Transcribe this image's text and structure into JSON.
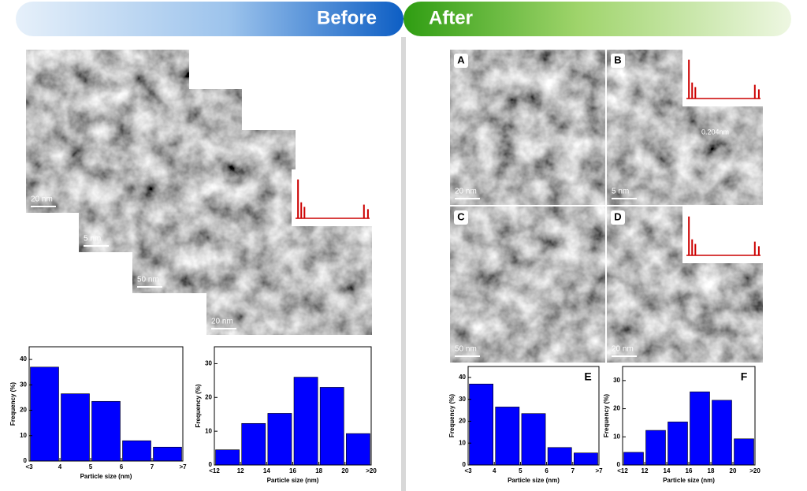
{
  "banner": {
    "before": "Before",
    "after": "After"
  },
  "before_images": [
    {
      "scale": "20 nm"
    },
    {
      "scale": "5 nm"
    },
    {
      "scale": "50 nm"
    },
    {
      "scale": "20 nm"
    }
  ],
  "after_images": [
    {
      "label": "A",
      "scale": "20 nm"
    },
    {
      "label": "B",
      "scale": "5 nm",
      "annotation": "0.204nm"
    },
    {
      "label": "C",
      "scale": "50 nm"
    },
    {
      "label": "D",
      "scale": "20 nm"
    }
  ],
  "chart_data": [
    {
      "type": "histogram",
      "xlabel": "Particle size (nm)",
      "ylabel": "Frequency (%)",
      "bins": [
        "<3",
        "4",
        "5",
        "6",
        "7",
        ">7"
      ],
      "values": [
        37,
        26.5,
        23.5,
        8,
        5.5
      ],
      "color": "#0000ff",
      "ylim": [
        0,
        45
      ],
      "yticks": [
        0,
        10,
        20,
        30,
        40
      ]
    },
    {
      "type": "histogram",
      "xlabel": "Particle size (nm)",
      "ylabel": "Frequency (%)",
      "bins": [
        "<12",
        "12",
        "14",
        "16",
        "18",
        "20",
        ">20"
      ],
      "values": [
        4.5,
        12.3,
        15.3,
        26,
        23,
        9.3
      ],
      "color": "#0000ff",
      "ylim": [
        0,
        35
      ],
      "yticks": [
        0,
        10,
        20,
        30
      ]
    },
    {
      "type": "histogram",
      "label": "E",
      "xlabel": "Particle size (nm)",
      "ylabel": "Frequency (%)",
      "bins": [
        "<3",
        "4",
        "5",
        "6",
        "7",
        ">7"
      ],
      "values": [
        37,
        26.5,
        23.5,
        8,
        5.5
      ],
      "color": "#0000ff",
      "ylim": [
        0,
        45
      ],
      "yticks": [
        0,
        10,
        20,
        30,
        40
      ]
    },
    {
      "type": "histogram",
      "label": "F",
      "xlabel": "Particle size (nm)",
      "ylabel": "Frequency (%)",
      "bins": [
        "<12",
        "12",
        "14",
        "16",
        "18",
        "20",
        ">20"
      ],
      "values": [
        4.5,
        12.3,
        15.3,
        26,
        23,
        9.3
      ],
      "color": "#0000ff",
      "ylim": [
        0,
        35
      ],
      "yticks": [
        0,
        10,
        20,
        30
      ]
    }
  ]
}
